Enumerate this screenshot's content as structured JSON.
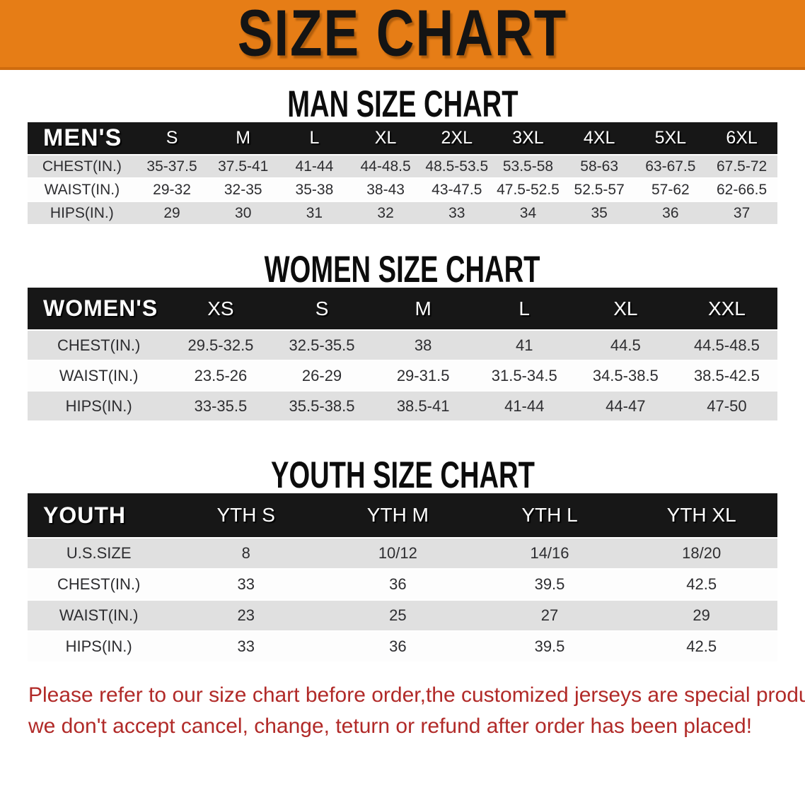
{
  "banner": {
    "title": "SIZE CHART"
  },
  "colors": {
    "banner_orange": "#e67d16",
    "banner_border": "#cf6c0e",
    "header_black": "#171717",
    "row_stripe_gray": "#e0e0e0",
    "footer_red": "#b12a28"
  },
  "sections": [
    {
      "id": "men",
      "heading": "MAN SIZE CHART",
      "table": {
        "header_label": "MEN'S",
        "columns": [
          "S",
          "M",
          "L",
          "XL",
          "2XL",
          "3XL",
          "4XL",
          "5XL",
          "6XL"
        ],
        "rows": [
          {
            "label": "CHEST(IN.)",
            "values": [
              "35-37.5",
              "37.5-41",
              "41-44",
              "44-48.5",
              "48.5-53.5",
              "53.5-58",
              "58-63",
              "63-67.5",
              "67.5-72"
            ]
          },
          {
            "label": "WAIST(IN.)",
            "values": [
              "29-32",
              "32-35",
              "35-38",
              "38-43",
              "43-47.5",
              "47.5-52.5",
              "52.5-57",
              "57-62",
              "62-66.5"
            ]
          },
          {
            "label": "HIPS(IN.)",
            "values": [
              "29",
              "30",
              "31",
              "32",
              "33",
              "34",
              "35",
              "36",
              "37"
            ]
          }
        ]
      }
    },
    {
      "id": "women",
      "heading": "WOMEN SIZE CHART",
      "table": {
        "header_label": "WOMEN'S",
        "columns": [
          "XS",
          "S",
          "M",
          "L",
          "XL",
          "XXL"
        ],
        "rows": [
          {
            "label": "CHEST(IN.)",
            "values": [
              "29.5-32.5",
              "32.5-35.5",
              "38",
              "41",
              "44.5",
              "44.5-48.5"
            ]
          },
          {
            "label": "WAIST(IN.)",
            "values": [
              "23.5-26",
              "26-29",
              "29-31.5",
              "31.5-34.5",
              "34.5-38.5",
              "38.5-42.5"
            ]
          },
          {
            "label": "HIPS(IN.)",
            "values": [
              "33-35.5",
              "35.5-38.5",
              "38.5-41",
              "41-44",
              "44-47",
              "47-50"
            ]
          }
        ]
      }
    },
    {
      "id": "youth",
      "heading": "YOUTH SIZE CHART",
      "table": {
        "header_label": "YOUTH",
        "columns": [
          "YTH S",
          "YTH M",
          "YTH L",
          "YTH XL"
        ],
        "rows": [
          {
            "label": "U.S.SIZE",
            "values": [
              "8",
              "10/12",
              "14/16",
              "18/20"
            ]
          },
          {
            "label": "CHEST(IN.)",
            "values": [
              "33",
              "36",
              "39.5",
              "42.5"
            ]
          },
          {
            "label": "WAIST(IN.)",
            "values": [
              "23",
              "25",
              "27",
              "29"
            ]
          },
          {
            "label": "HIPS(IN.)",
            "values": [
              "33",
              "36",
              "39.5",
              "42.5"
            ]
          }
        ]
      }
    }
  ],
  "footer": {
    "line1": "Please refer to our size chart before order,the customized jerseys are special products,",
    "line2": "we don't accept cancel, change, teturn or refund after order has been placed!"
  }
}
